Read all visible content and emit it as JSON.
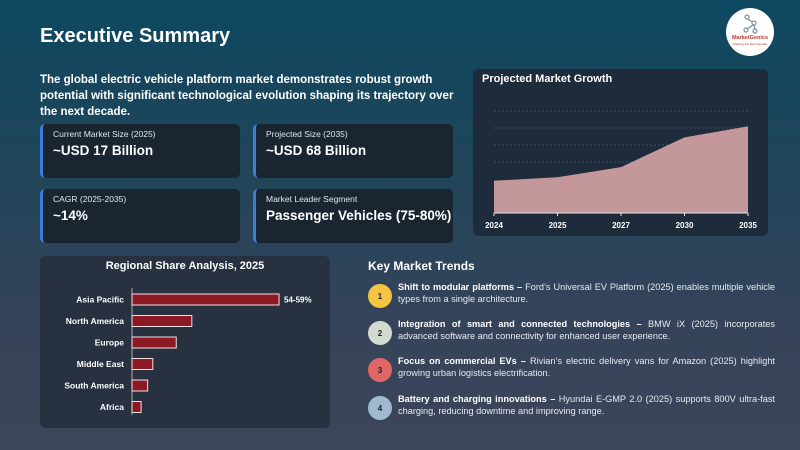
{
  "header": {
    "title": "Executive Summary",
    "logo_text": "MarketGenics",
    "logo_tagline": "Shaping the Next Decade"
  },
  "intro": "The global electric vehicle platform market demonstrates robust growth potential with significant technological evolution shaping its trajectory over the next decade.",
  "cards": [
    {
      "label": "Current Market Size (2025)",
      "value": "~USD 17 Billion"
    },
    {
      "label": "Projected Size (2035)",
      "value": "~USD 68 Billion"
    },
    {
      "label": "CAGR (2025-2035)",
      "value": "~14%"
    },
    {
      "label": "Market Leader Segment",
      "value": "Passenger Vehicles (75-80%)"
    }
  ],
  "colors": {
    "accent": "#3b7dd8",
    "area_fill": "#c4979a",
    "bar_fill": "#8b1a24",
    "card_bg": "#1a2532"
  },
  "chart_data": [
    {
      "type": "area",
      "title": "Projected Market Growth",
      "categories": [
        "2024",
        "2025",
        "2027",
        "2030",
        "2035"
      ],
      "values": [
        38,
        42,
        54,
        89,
        102
      ],
      "ylim": [
        0,
        120
      ],
      "grid": true,
      "y_tick_labels": false
    },
    {
      "type": "bar",
      "orientation": "horizontal",
      "title": "Regional Share Analysis, 2025",
      "categories": [
        "Asia Pacific",
        "North America",
        "Europe",
        "Middle East",
        "South America",
        "Africa"
      ],
      "values": [
        56.5,
        23,
        17,
        8,
        6,
        3.5
      ],
      "unit": "%",
      "data_labels": [
        "54-59%",
        "",
        "",
        "",
        "",
        ""
      ],
      "xlim": [
        0,
        60
      ],
      "grid": false
    }
  ],
  "trends": {
    "title": "Key Market Trends",
    "items": [
      {
        "num": "1",
        "color": "#f4c542",
        "head": "Shift to modular platforms –",
        "body": " Ford’s Universal EV Platform (2025) enables multiple vehicle types from a single architecture."
      },
      {
        "num": "2",
        "color": "#d3dbd0",
        "head": "Integration of smart and connected technologies –",
        "body": " BMW iX (2025) incorporates advanced software and connectivity for enhanced user experience."
      },
      {
        "num": "3",
        "color": "#e06666",
        "head": "Focus on commercial EVs –",
        "body": " Rivian’s electric delivery vans for Amazon (2025) highlight growing urban logistics electrification."
      },
      {
        "num": "4",
        "color": "#9fb9cf",
        "head": "Battery and charging innovations –",
        "body": " Hyundai E-GMP 2.0 (2025) supports 800V ultra-fast charging, reducing downtime and improving range."
      }
    ]
  }
}
